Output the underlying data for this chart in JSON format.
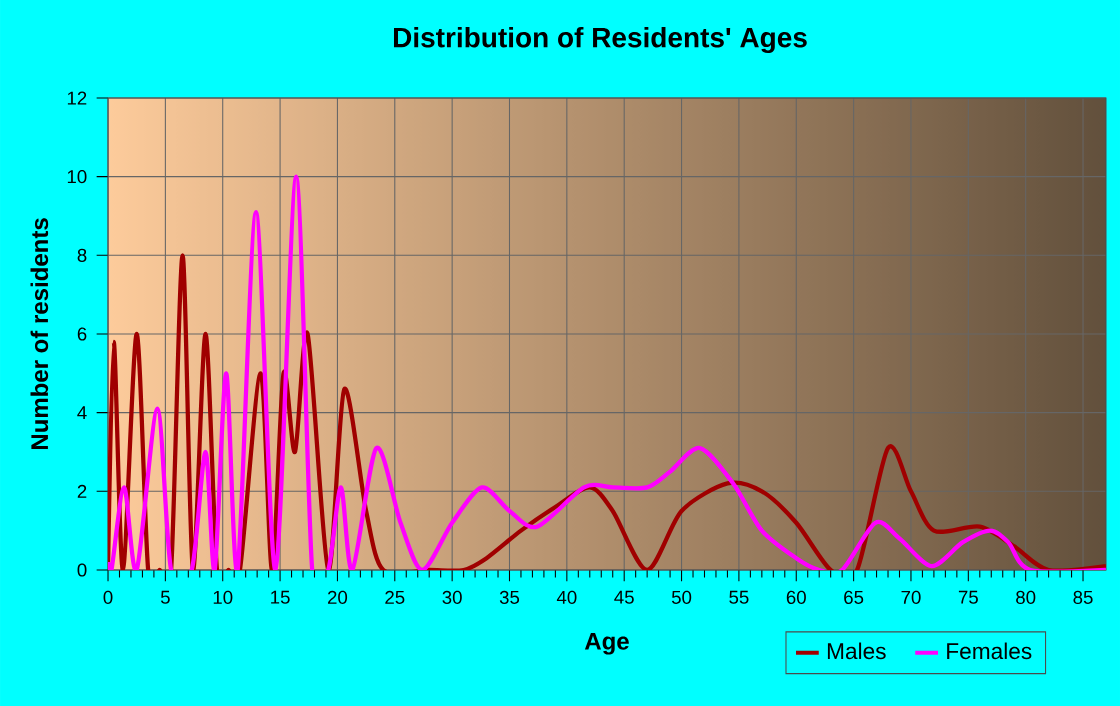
{
  "chart_data": {
    "type": "line",
    "title": "Distribution of Residents' Ages",
    "xlabel": "Age",
    "ylabel": "Number of residents",
    "xlim": [
      0,
      87
    ],
    "ylim": [
      0,
      12
    ],
    "xticks": [
      0,
      5,
      10,
      15,
      20,
      25,
      30,
      35,
      40,
      45,
      50,
      55,
      60,
      65,
      70,
      75,
      80,
      85
    ],
    "yticks": [
      0,
      2,
      4,
      6,
      8,
      10,
      12
    ],
    "grid": true,
    "legend": "bottom right",
    "marker": "none",
    "line_style": "solid",
    "series": [
      {
        "name": "Males",
        "color": "#a00000",
        "x": [
          0,
          0.5,
          1.3,
          2.5,
          3.5,
          4.5,
          5.5,
          6.5,
          7.4,
          8.5,
          9.5,
          10.5,
          11.5,
          13.3,
          14.3,
          15.3,
          16.3,
          17.4,
          19.2,
          20.6,
          22.5,
          24,
          28,
          31,
          33,
          36,
          39,
          42,
          44,
          47,
          50,
          54,
          57,
          60,
          63,
          65.3,
          68,
          70,
          72,
          76,
          79,
          82,
          87
        ],
        "values": [
          0,
          5.8,
          0,
          6,
          0,
          0,
          0,
          8,
          0,
          6,
          0,
          0,
          0,
          5,
          0,
          5,
          3,
          6,
          0,
          4.6,
          1.5,
          0,
          0,
          0,
          0.3,
          1,
          1.6,
          2.1,
          1.5,
          0,
          1.5,
          2.2,
          2,
          1.2,
          0,
          0,
          3.1,
          2,
          1,
          1.1,
          0.6,
          0,
          0.1
        ]
      },
      {
        "name": "Females",
        "color": "#ff00ff",
        "x": [
          0,
          0.3,
          1.4,
          2.5,
          4.3,
          5.5,
          7.3,
          8.5,
          9.3,
          10.3,
          11.3,
          12.9,
          14.6,
          16.4,
          17.8,
          19.2,
          20.3,
          21.3,
          23.4,
          25.5,
          27.4,
          30,
          32.6,
          35,
          37.4,
          41.5,
          44,
          47,
          49,
          51.6,
          54.5,
          57,
          60,
          62,
          64,
          66.9,
          69,
          71.8,
          74.5,
          76.9,
          78.5,
          80.4,
          87
        ],
        "values": [
          0.2,
          0,
          2.1,
          0,
          4.1,
          0,
          0,
          3,
          0,
          5,
          0,
          9.1,
          0,
          10,
          0,
          0,
          2.1,
          0,
          3.1,
          1.2,
          0,
          1.2,
          2.1,
          1.5,
          1.1,
          2.1,
          2.1,
          2.1,
          2.5,
          3.1,
          2.2,
          1,
          0.3,
          0,
          0,
          1.2,
          0.8,
          0.1,
          0.7,
          1,
          0.7,
          0,
          0
        ]
      }
    ]
  }
}
